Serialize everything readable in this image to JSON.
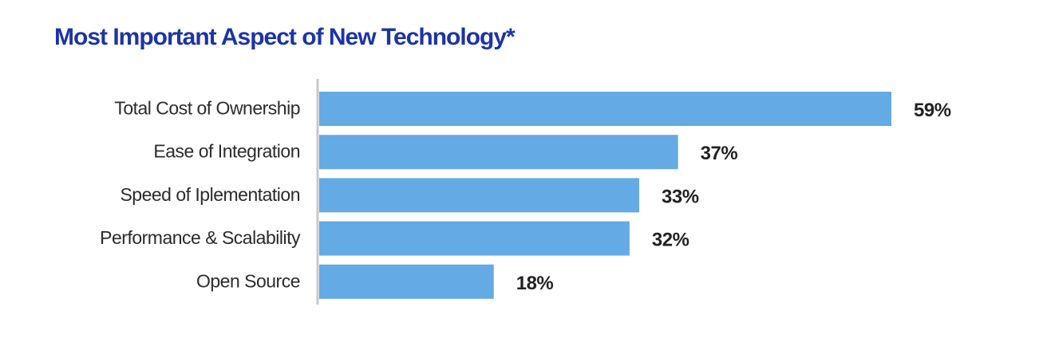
{
  "chart_data": {
    "type": "bar",
    "orientation": "horizontal",
    "title": "Most Important Aspect of New Technology*",
    "categories": [
      "Total Cost of Ownership",
      "Ease of Integration",
      "Speed of Iplementation",
      "Performance & Scalability",
      "Open Source"
    ],
    "values": [
      59,
      37,
      33,
      32,
      18
    ],
    "value_labels": [
      "59%",
      "37%",
      "33%",
      "32%",
      "18%"
    ],
    "unit": "%",
    "xlim": [
      0,
      59
    ],
    "grid": false,
    "legend": "none",
    "colors": {
      "bar": "#64aae4",
      "axis": "#c8c8c8",
      "title": "#1c34a8",
      "label": "#2b2b2b",
      "value": "#222222"
    }
  }
}
